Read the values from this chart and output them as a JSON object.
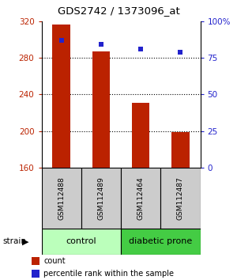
{
  "title": "GDS2742 / 1373096_at",
  "samples": [
    "GSM112488",
    "GSM112489",
    "GSM112464",
    "GSM112487"
  ],
  "counts": [
    316,
    287,
    231,
    199
  ],
  "percentiles": [
    87,
    84,
    81,
    79
  ],
  "groups": [
    "control",
    "control",
    "diabetic prone",
    "diabetic prone"
  ],
  "ylim_left": [
    160,
    320
  ],
  "ylim_right": [
    0,
    100
  ],
  "yticks_left": [
    160,
    200,
    240,
    280,
    320
  ],
  "yticks_right": [
    0,
    25,
    50,
    75,
    100
  ],
  "ytick_labels_right": [
    "0",
    "25",
    "50",
    "75",
    "100%"
  ],
  "bar_color": "#bb2200",
  "dot_color": "#2222cc",
  "group_colors": {
    "control": "#bbffbb",
    "diabetic prone": "#44cc44"
  },
  "sample_box_color": "#cccccc",
  "bar_bottom": 160,
  "bar_width": 0.45,
  "dot_size": 5,
  "grid_dotted_ticks": [
    200,
    240,
    280
  ],
  "spine_color": "#000000"
}
